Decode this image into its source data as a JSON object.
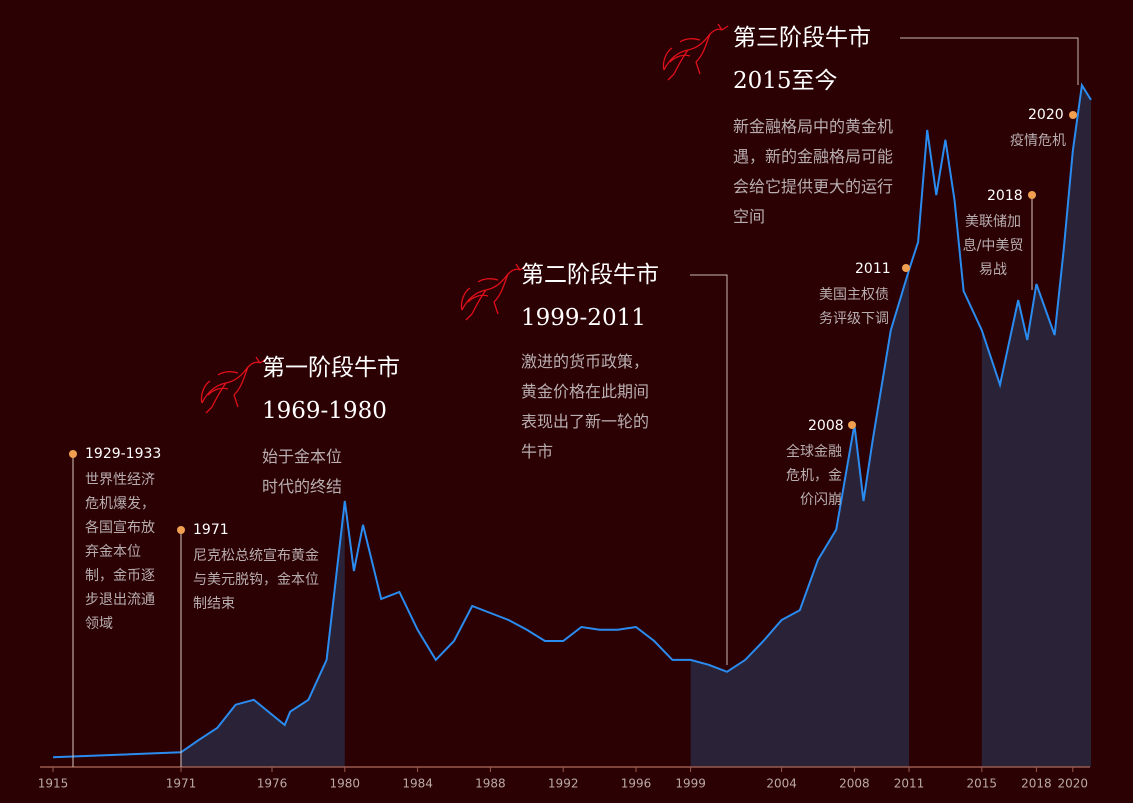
{
  "chart_data": {
    "type": "line",
    "x": [
      1915,
      1971,
      1972,
      1973,
      1974,
      1975,
      1976.7,
      1977,
      1978,
      1979,
      1980,
      1980.5,
      1981,
      1982,
      1983,
      1984,
      1985,
      1986,
      1987,
      1988,
      1989,
      1990,
      1991,
      1992,
      1993,
      1994,
      1995,
      1996,
      1997,
      1998,
      1999,
      2000,
      2001,
      2002,
      2003,
      2004,
      2005,
      2006,
      2007,
      2008,
      2008.5,
      2009,
      2010,
      2011,
      2011.5,
      2012,
      2012.5,
      2013,
      2013.5,
      2014,
      2015,
      2016,
      2017,
      2017.5,
      2018,
      2019,
      2019.5,
      2020,
      2020.5,
      2021
    ],
    "series": [
      {
        "color": "#2a8cf0",
        "values": [
          1.4,
          2.1,
          3.9,
          5.6,
          8.9,
          9.6,
          6,
          7.9,
          9.6,
          15.3,
          38,
          28,
          34.6,
          24,
          25,
          19.6,
          15.3,
          18,
          23,
          22,
          21,
          19.6,
          18,
          18,
          20,
          19.6,
          19.6,
          20,
          18,
          15.3,
          15.3,
          14.6,
          13.6,
          15.3,
          18,
          21,
          22.4,
          29.6,
          33.9,
          48.9,
          38,
          46.6,
          62.4,
          71,
          75,
          91,
          81.7,
          89.6,
          81,
          68,
          62.4,
          54.6,
          66.7,
          61,
          69,
          61.7,
          73.9,
          88,
          97.4,
          95.3
        ]
      }
    ],
    "ylim": [
      0,
      100
    ],
    "xticks": [
      1915,
      1971,
      1976,
      1980,
      1984,
      1988,
      1992,
      1996,
      1999,
      2004,
      2008,
      2011,
      2015,
      2018,
      2020
    ],
    "shaded_ranges": [
      [
        1971,
        1980
      ],
      [
        1999,
        2011
      ],
      [
        2015,
        2021
      ]
    ],
    "phases": [
      {
        "title": "第一阶段牛市",
        "years": "1969-1980",
        "text": "始于金本位时代的终结"
      },
      {
        "title": "第二阶段牛市",
        "years": "1999-2011",
        "text": "激进的货币政策，黄金价格在此期间表现出了新一轮的牛市"
      },
      {
        "title": "第三阶段牛市",
        "years": "2015至今",
        "text": "新金融格局中的黄金机遇，新的金融格局可能会给它提供更大的运行空间"
      }
    ],
    "events": [
      {
        "label": "1929-1933",
        "text": "世界性经济危机爆发，各国宣布放弃金本位制，金币逐步退出流通领域"
      },
      {
        "label": "1971",
        "text": "尼克松总统宣布黄金与美元脱钩，金本位制结束"
      },
      {
        "label": "2008",
        "text": "全球金融危机，金价闪崩"
      },
      {
        "label": "2011",
        "text": "美国主权债务评级下调"
      },
      {
        "label": "2018",
        "text": "美联储加息/中美贸易战"
      },
      {
        "label": "2020",
        "text": "疫情危机"
      }
    ]
  }
}
